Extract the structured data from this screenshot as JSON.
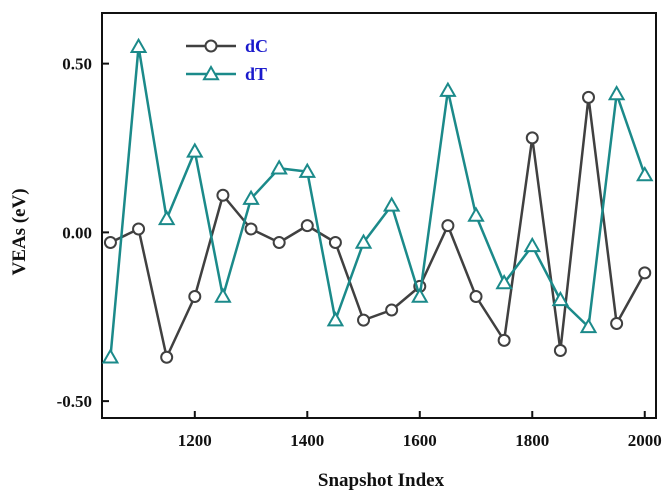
{
  "chart_data": {
    "type": "line",
    "xlabel": "Snapshot Index",
    "ylabel": "VEAs  (eV)",
    "xlim": [
      1035,
      2020
    ],
    "ylim": [
      -0.55,
      0.65
    ],
    "xticks": [
      1200,
      1400,
      1600,
      1800,
      2000
    ],
    "xtick_labels": [
      "1200",
      "1400",
      "1600",
      "1800",
      "2000"
    ],
    "yticks": [
      0.5,
      0.0,
      -0.5
    ],
    "ytick_labels": [
      "0.50",
      "0.00",
      "-0.50"
    ],
    "x": [
      1050,
      1100,
      1150,
      1200,
      1250,
      1300,
      1350,
      1400,
      1450,
      1500,
      1550,
      1600,
      1650,
      1700,
      1750,
      1800,
      1850,
      1900,
      1950,
      2000
    ],
    "series": [
      {
        "name": "dC",
        "marker": "circle",
        "color": "#404040",
        "values": [
          -0.03,
          0.01,
          -0.37,
          -0.19,
          0.11,
          0.01,
          -0.03,
          0.02,
          -0.03,
          -0.26,
          -0.23,
          -0.16,
          0.02,
          -0.19,
          -0.32,
          0.28,
          -0.35,
          0.4,
          -0.27,
          -0.12
        ]
      },
      {
        "name": "dT",
        "marker": "triangle",
        "color": "#1b8a8a",
        "values": [
          -0.37,
          0.55,
          0.04,
          0.24,
          -0.19,
          0.1,
          0.19,
          0.18,
          -0.26,
          -0.03,
          0.08,
          -0.19,
          0.42,
          0.05,
          -0.15,
          -0.04,
          -0.2,
          -0.28,
          0.41,
          0.17
        ]
      }
    ],
    "legend": {
      "placement": "top-left",
      "text_color": "#1a1acc"
    },
    "grid": false
  }
}
